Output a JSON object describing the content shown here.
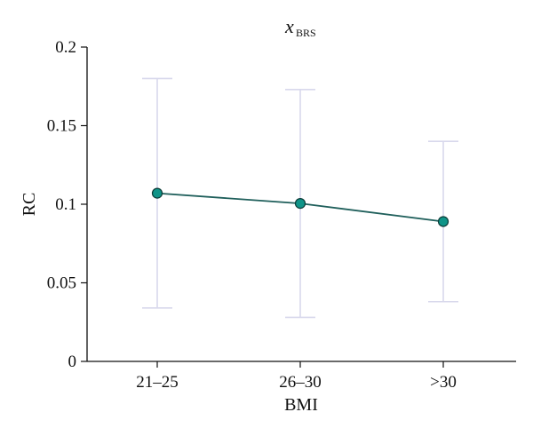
{
  "chart_data": {
    "type": "line",
    "title": "x",
    "title_subscript": "BRS",
    "xlabel": "BMI",
    "ylabel": "RC",
    "categories": [
      "21–25",
      "26–30",
      ">30"
    ],
    "ylim": [
      0,
      0.2
    ],
    "yticks": [
      0,
      0.05,
      0.1,
      0.15,
      0.2
    ],
    "ytick_labels": [
      "0",
      "0.05",
      "0.1",
      "0.15",
      "0.2"
    ],
    "grid": false,
    "series": [
      {
        "values": [
          0.107,
          0.1005,
          0.089
        ],
        "error_low": [
          0.034,
          0.028,
          0.038
        ],
        "error_high": [
          0.18,
          0.173,
          0.14
        ]
      }
    ],
    "colors": {
      "line": "#1f5f5b",
      "marker": "#0f9488",
      "errorbar": "#d8d8ec",
      "axis": "#111111"
    }
  }
}
